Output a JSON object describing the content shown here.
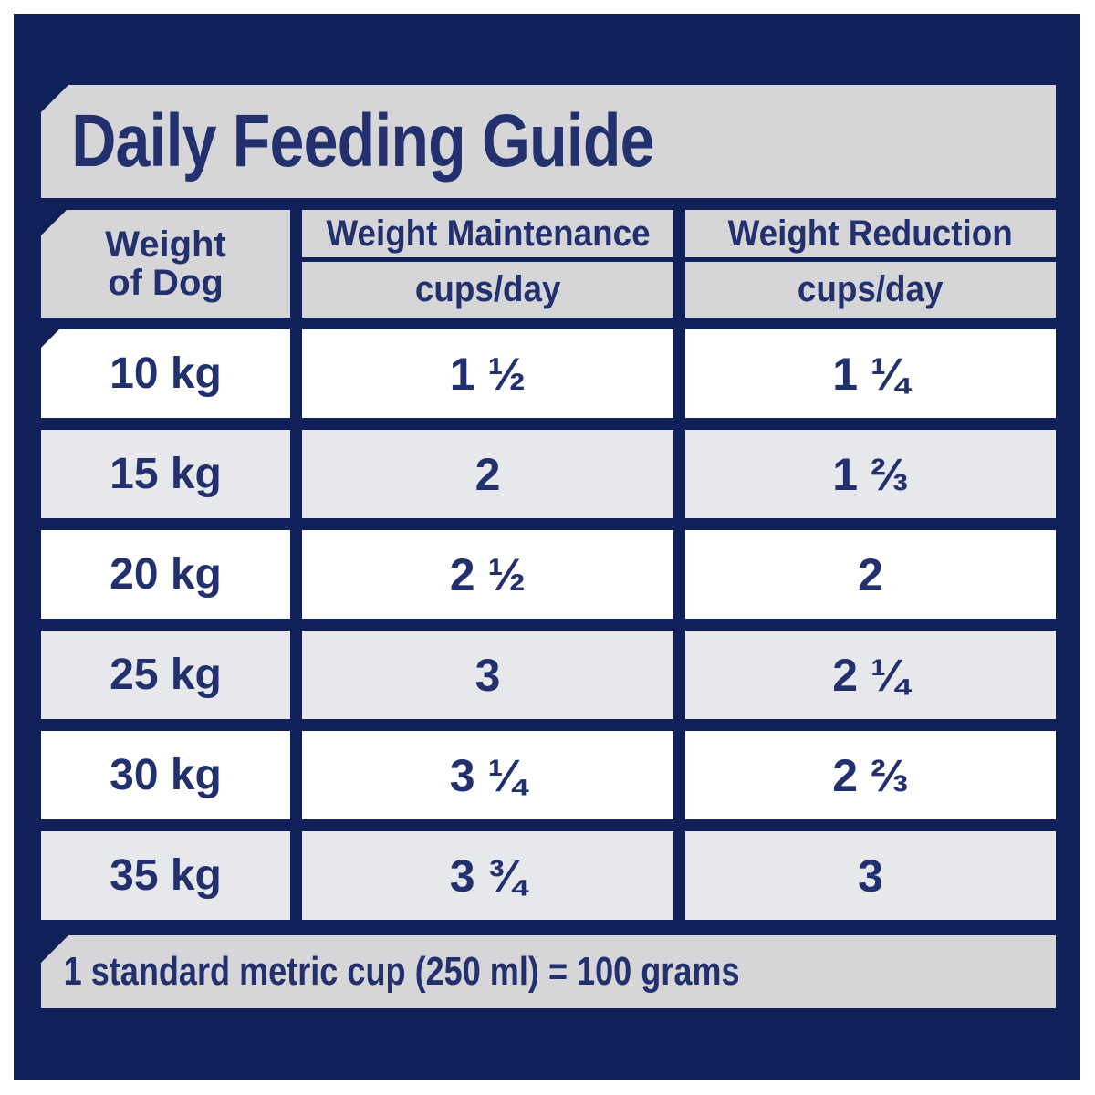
{
  "title": "Daily Feeding Guide",
  "header": {
    "weight_line1": "Weight",
    "weight_line2": "of Dog",
    "maintenance": "Weight Maintenance",
    "reduction": "Weight Reduction",
    "unit": "cups/day"
  },
  "rows": [
    {
      "weight": "10 kg",
      "maintenance": "1 ½",
      "reduction": "1 ¼"
    },
    {
      "weight": "15 kg",
      "maintenance": "2",
      "reduction": "1 ⅔"
    },
    {
      "weight": "20 kg",
      "maintenance": "2 ½",
      "reduction": "2"
    },
    {
      "weight": "25 kg",
      "maintenance": "3",
      "reduction": "2 ¼"
    },
    {
      "weight": "30 kg",
      "maintenance": "3 ¼",
      "reduction": "2 ⅔"
    },
    {
      "weight": "35 kg",
      "maintenance": "3 ¾",
      "reduction": "3"
    }
  ],
  "footnote": "1 standard metric cup (250 ml) = 100 grams",
  "colors": {
    "panel_navy": "#10215a",
    "text_navy": "#22306e",
    "banner_gray": "#d6d6d9",
    "row_alt_gray": "#e7e8ec",
    "row_white": "#ffffff"
  },
  "chart_data": {
    "type": "table",
    "title": "Daily Feeding Guide",
    "columns": [
      "Weight of Dog",
      "Weight Maintenance cups/day",
      "Weight Reduction cups/day"
    ],
    "rows": [
      [
        "10 kg",
        "1 ½",
        "1 ¼"
      ],
      [
        "15 kg",
        "2",
        "1 ⅔"
      ],
      [
        "20 kg",
        "2 ½",
        "2"
      ],
      [
        "25 kg",
        "3",
        "2 ¼"
      ],
      [
        "30 kg",
        "3 ¼",
        "2 ⅔"
      ],
      [
        "35 kg",
        "3 ¾",
        "3"
      ]
    ],
    "weights_kg": [
      10,
      15,
      20,
      25,
      30,
      35
    ],
    "maintenance_cups_per_day": [
      1.5,
      2,
      2.5,
      3,
      3.25,
      3.75
    ],
    "reduction_cups_per_day": [
      1.25,
      1.67,
      2,
      2.25,
      2.67,
      3
    ],
    "footnote": "1 standard metric cup (250 ml) = 100 grams"
  }
}
